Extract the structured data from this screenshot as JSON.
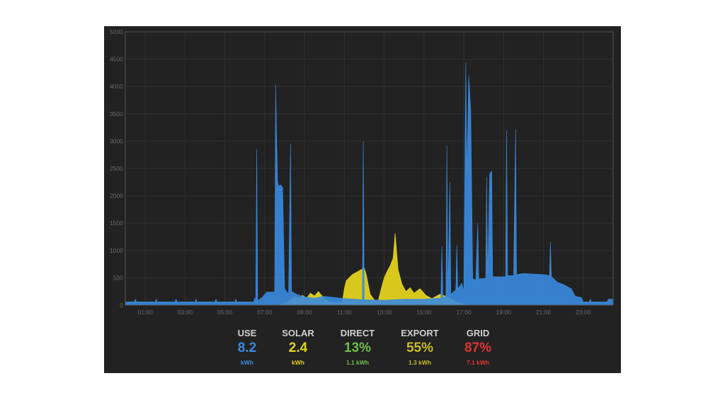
{
  "chart_data": {
    "type": "area",
    "title": "",
    "xlabel": "",
    "ylabel": "",
    "ylim": [
      0,
      5000
    ],
    "xlim": [
      0,
      24.5
    ],
    "grid": true,
    "y_ticks": [
      "0",
      "500",
      "1000",
      "1500",
      "2000",
      "2500",
      "3000",
      "3500",
      "4000",
      "4500",
      "5000"
    ],
    "x_ticks": [
      {
        "x": 1,
        "label": "01:00"
      },
      {
        "x": 3,
        "label": "03:00"
      },
      {
        "x": 5,
        "label": "05:00"
      },
      {
        "x": 7,
        "label": "07:00"
      },
      {
        "x": 9,
        "label": "09:00"
      },
      {
        "x": 11,
        "label": "11:00"
      },
      {
        "x": 13,
        "label": "13:00"
      },
      {
        "x": 15,
        "label": "15:00"
      },
      {
        "x": 17,
        "label": "17:00"
      },
      {
        "x": 19,
        "label": "19:00"
      },
      {
        "x": 21,
        "label": "21:00"
      },
      {
        "x": 23,
        "label": "23:00"
      }
    ],
    "series": [
      {
        "color": "#e3d21d",
        "points": [
          [
            0,
            0
          ],
          [
            7.6,
            0
          ],
          [
            7.9,
            20
          ],
          [
            8.2,
            70
          ],
          [
            8.5,
            150
          ],
          [
            8.7,
            120
          ],
          [
            8.9,
            180
          ],
          [
            9.1,
            130
          ],
          [
            9.3,
            220
          ],
          [
            9.5,
            170
          ],
          [
            9.7,
            250
          ],
          [
            9.9,
            160
          ],
          [
            10.1,
            90
          ],
          [
            10.3,
            60
          ],
          [
            10.5,
            50
          ],
          [
            10.7,
            40
          ],
          [
            10.9,
            60
          ],
          [
            11.0,
            300
          ],
          [
            11.1,
            450
          ],
          [
            11.4,
            560
          ],
          [
            11.7,
            620
          ],
          [
            12.0,
            680
          ],
          [
            12.1,
            560
          ],
          [
            12.3,
            200
          ],
          [
            12.5,
            100
          ],
          [
            12.7,
            80
          ],
          [
            12.85,
            300
          ],
          [
            13.0,
            500
          ],
          [
            13.15,
            620
          ],
          [
            13.3,
            720
          ],
          [
            13.45,
            860
          ],
          [
            13.55,
            1320
          ],
          [
            13.7,
            650
          ],
          [
            13.9,
            380
          ],
          [
            14.1,
            250
          ],
          [
            14.3,
            320
          ],
          [
            14.5,
            220
          ],
          [
            14.8,
            300
          ],
          [
            15.1,
            180
          ],
          [
            15.4,
            120
          ],
          [
            15.8,
            200
          ],
          [
            16.2,
            150
          ],
          [
            16.5,
            80
          ],
          [
            16.8,
            40
          ],
          [
            17.2,
            0
          ],
          [
            24.5,
            0
          ]
        ]
      },
      {
        "color": "#3a8be0",
        "points": [
          [
            0,
            60
          ],
          [
            0.45,
            60
          ],
          [
            0.5,
            110
          ],
          [
            0.55,
            60
          ],
          [
            1.5,
            60
          ],
          [
            1.55,
            110
          ],
          [
            1.6,
            60
          ],
          [
            2.5,
            60
          ],
          [
            2.55,
            110
          ],
          [
            2.6,
            60
          ],
          [
            3.5,
            60
          ],
          [
            3.55,
            110
          ],
          [
            3.6,
            60
          ],
          [
            4.5,
            60
          ],
          [
            4.55,
            110
          ],
          [
            4.6,
            60
          ],
          [
            5.5,
            60
          ],
          [
            5.55,
            110
          ],
          [
            5.6,
            60
          ],
          [
            6.45,
            60
          ],
          [
            6.5,
            140
          ],
          [
            6.55,
            60
          ],
          [
            6.6,
            2860
          ],
          [
            6.65,
            80
          ],
          [
            6.9,
            150
          ],
          [
            7.1,
            240
          ],
          [
            7.5,
            240
          ],
          [
            7.55,
            4040
          ],
          [
            7.6,
            3080
          ],
          [
            7.65,
            2250
          ],
          [
            7.7,
            2180
          ],
          [
            7.8,
            2200
          ],
          [
            7.9,
            2150
          ],
          [
            8.0,
            300
          ],
          [
            8.2,
            200
          ],
          [
            8.3,
            2960
          ],
          [
            8.35,
            250
          ],
          [
            8.6,
            200
          ],
          [
            9.0,
            150
          ],
          [
            9.5,
            130
          ],
          [
            10.0,
            160
          ],
          [
            10.5,
            140
          ],
          [
            11.0,
            120
          ],
          [
            11.5,
            110
          ],
          [
            11.9,
            100
          ],
          [
            11.95,
            3000
          ],
          [
            12.0,
            100
          ],
          [
            13.0,
            90
          ],
          [
            14.0,
            110
          ],
          [
            15.0,
            110
          ],
          [
            15.5,
            120
          ],
          [
            15.85,
            130
          ],
          [
            15.9,
            1080
          ],
          [
            15.95,
            130
          ],
          [
            16.1,
            170
          ],
          [
            16.15,
            2920
          ],
          [
            16.2,
            180
          ],
          [
            16.3,
            2250
          ],
          [
            16.35,
            200
          ],
          [
            16.6,
            280
          ],
          [
            16.65,
            1100
          ],
          [
            16.7,
            300
          ],
          [
            16.9,
            400
          ],
          [
            17.0,
            250
          ],
          [
            17.1,
            4440
          ],
          [
            17.15,
            2400
          ],
          [
            17.25,
            4200
          ],
          [
            17.35,
            3560
          ],
          [
            17.45,
            480
          ],
          [
            17.6,
            460
          ],
          [
            17.7,
            1500
          ],
          [
            17.75,
            480
          ],
          [
            18.1,
            490
          ],
          [
            18.15,
            2350
          ],
          [
            18.2,
            500
          ],
          [
            18.3,
            2400
          ],
          [
            18.4,
            2450
          ],
          [
            18.45,
            520
          ],
          [
            18.7,
            520
          ],
          [
            19.1,
            520
          ],
          [
            19.15,
            3200
          ],
          [
            19.2,
            540
          ],
          [
            19.5,
            540
          ],
          [
            19.6,
            3220
          ],
          [
            19.65,
            560
          ],
          [
            20.0,
            580
          ],
          [
            20.5,
            570
          ],
          [
            21.0,
            560
          ],
          [
            21.3,
            540
          ],
          [
            21.35,
            1160
          ],
          [
            21.4,
            520
          ],
          [
            21.7,
            420
          ],
          [
            22.0,
            380
          ],
          [
            22.4,
            300
          ],
          [
            22.6,
            160
          ],
          [
            22.9,
            140
          ],
          [
            23.0,
            60
          ],
          [
            23.3,
            60
          ],
          [
            23.35,
            110
          ],
          [
            23.4,
            60
          ],
          [
            24.2,
            60
          ],
          [
            24.25,
            110
          ],
          [
            24.5,
            110
          ]
        ]
      }
    ]
  },
  "stats": {
    "use": {
      "label": "USE",
      "value": "8.2",
      "sub": "kWh",
      "color": "#3a8be0"
    },
    "solar": {
      "label": "SOLAR",
      "value": "2.4",
      "sub": "kWh",
      "color": "#e3d21d"
    },
    "direct": {
      "label": "DIRECT",
      "value": "13%",
      "sub": "1.1 kWh",
      "color": "#6dbf4b"
    },
    "export": {
      "label": "EXPORT",
      "value": "55%",
      "sub": "1.3 kWh",
      "color": "#c8bb28"
    },
    "grid": {
      "label": "GRID",
      "value": "87%",
      "sub": "7.1 kWh",
      "color": "#e03434"
    }
  }
}
